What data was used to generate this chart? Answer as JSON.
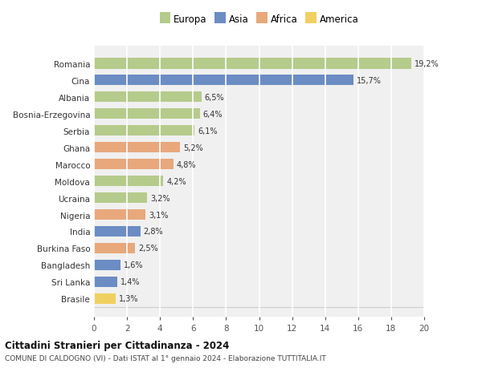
{
  "countries": [
    "Romania",
    "Cina",
    "Albania",
    "Bosnia-Erzegovina",
    "Serbia",
    "Ghana",
    "Marocco",
    "Moldova",
    "Ucraina",
    "Nigeria",
    "India",
    "Burkina Faso",
    "Bangladesh",
    "Sri Lanka",
    "Brasile"
  ],
  "values": [
    19.2,
    15.7,
    6.5,
    6.4,
    6.1,
    5.2,
    4.8,
    4.2,
    3.2,
    3.1,
    2.8,
    2.5,
    1.6,
    1.4,
    1.3
  ],
  "continents": [
    "Europa",
    "Asia",
    "Europa",
    "Europa",
    "Europa",
    "Africa",
    "Africa",
    "Europa",
    "Europa",
    "Africa",
    "Asia",
    "Africa",
    "Asia",
    "Asia",
    "America"
  ],
  "colors": {
    "Europa": "#b5cb8b",
    "Asia": "#6b8dc4",
    "Africa": "#e8a87c",
    "America": "#f0d060"
  },
  "legend_order": [
    "Europa",
    "Asia",
    "Africa",
    "America"
  ],
  "title": "Cittadini Stranieri per Cittadinanza - 2024",
  "subtitle": "COMUNE DI CALDOGNO (VI) - Dati ISTAT al 1° gennaio 2024 - Elaborazione TUTTITALIA.IT",
  "xlim": [
    0,
    20
  ],
  "xticks": [
    0,
    2,
    4,
    6,
    8,
    10,
    12,
    14,
    16,
    18,
    20
  ],
  "background_color": "#ffffff",
  "plot_bg_color": "#f0f0f0",
  "grid_color": "#ffffff",
  "bar_height": 0.65
}
